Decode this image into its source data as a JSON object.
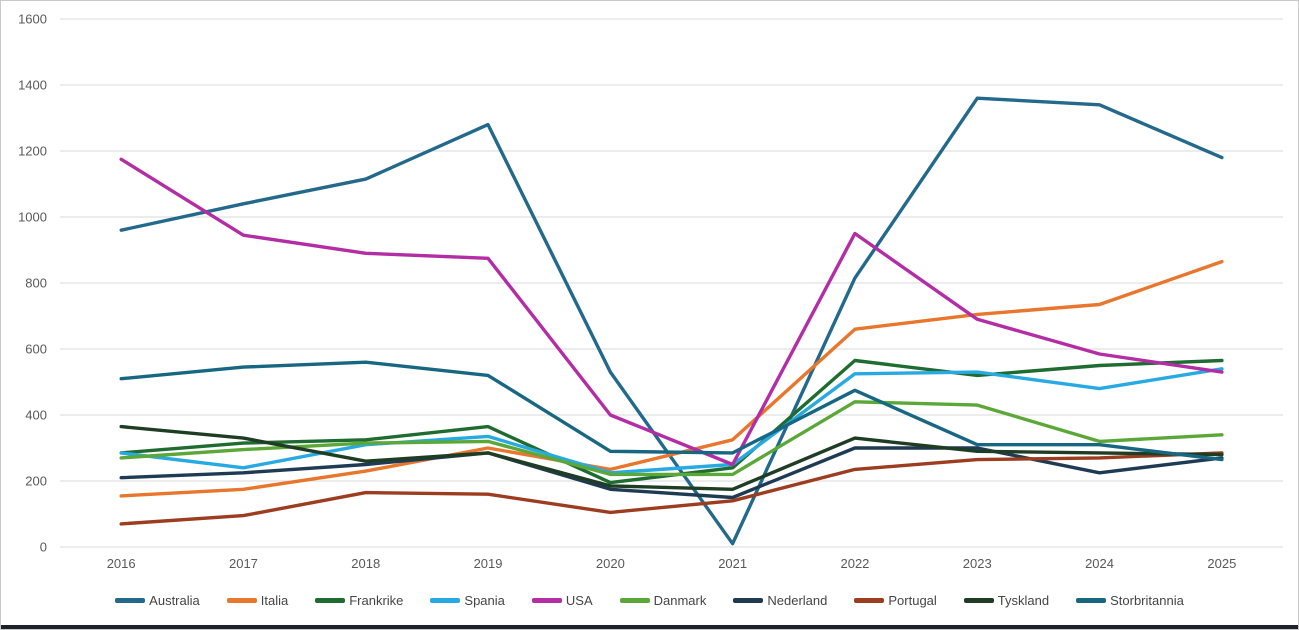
{
  "chart_data": {
    "type": "line",
    "title": "",
    "xlabel": "",
    "ylabel": "",
    "categories": [
      "2016",
      "2017",
      "2018",
      "2019",
      "2020",
      "2021",
      "2022",
      "2023",
      "2024",
      "2025"
    ],
    "series": [
      {
        "name": "Australia",
        "color": "#23698C",
        "values": [
          960,
          1040,
          1115,
          1280,
          530,
          10,
          815,
          1360,
          1340,
          1180
        ]
      },
      {
        "name": "Italia",
        "color": "#E8762D",
        "values": [
          155,
          175,
          230,
          300,
          235,
          325,
          660,
          705,
          735,
          865
        ]
      },
      {
        "name": "Frankrike",
        "color": "#1E6C30",
        "values": [
          285,
          315,
          325,
          365,
          195,
          240,
          565,
          520,
          550,
          565
        ]
      },
      {
        "name": "Spania",
        "color": "#27AAE1",
        "values": [
          285,
          240,
          310,
          335,
          225,
          250,
          525,
          530,
          480,
          540
        ]
      },
      {
        "name": "USA",
        "color": "#B32DA5",
        "values": [
          1175,
          945,
          890,
          875,
          400,
          250,
          950,
          690,
          585,
          530
        ]
      },
      {
        "name": "Danmark",
        "color": "#5BA838",
        "values": [
          270,
          295,
          315,
          320,
          220,
          220,
          440,
          430,
          320,
          340
        ]
      },
      {
        "name": "Nederland",
        "color": "#1F3B54",
        "values": [
          210,
          225,
          250,
          285,
          175,
          150,
          300,
          300,
          225,
          270
        ]
      },
      {
        "name": "Portugal",
        "color": "#9C3D20",
        "values": [
          70,
          95,
          165,
          160,
          105,
          140,
          235,
          265,
          270,
          285
        ]
      },
      {
        "name": "Tyskland",
        "color": "#1E3D23",
        "values": [
          365,
          330,
          260,
          285,
          185,
          175,
          330,
          290,
          285,
          280
        ]
      },
      {
        "name": "Storbritannia",
        "color": "#176782",
        "values": [
          510,
          545,
          560,
          520,
          290,
          285,
          475,
          310,
          310,
          265
        ]
      }
    ],
    "y_axis": {
      "min": 0,
      "max": 1600,
      "step": 200,
      "tick_labels": [
        "0",
        "200",
        "400",
        "600",
        "800",
        "1000",
        "1200",
        "1400",
        "1600"
      ]
    },
    "grid": true,
    "legend_position": "bottom",
    "gridline_color": "#d9d9d9",
    "line_width": 3.4
  }
}
